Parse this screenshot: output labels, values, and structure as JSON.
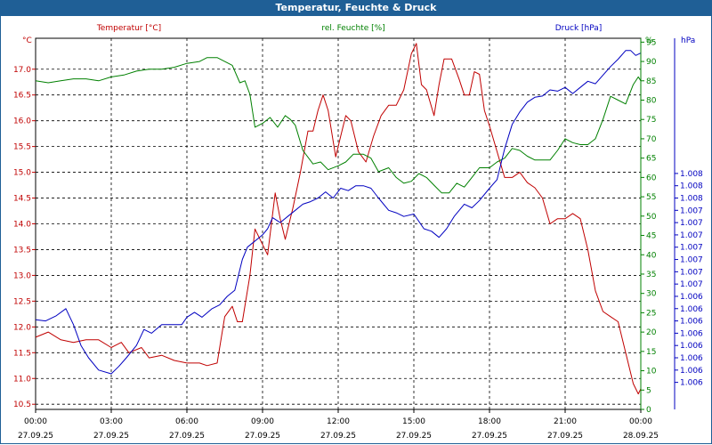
{
  "window": {
    "title": "Temperatur, Feuchte & Druck"
  },
  "colors": {
    "temperature": "#c00000",
    "humidity": "#008000",
    "pressure": "#0000c0",
    "title_bar": "#1f5f96",
    "grid": "#000000"
  },
  "chart_data": {
    "type": "line",
    "title": "Temperatur, Feuchte & Druck",
    "series_labels": {
      "temperature": "Temperatur [°C]",
      "humidity": "rel. Feuchte [%]",
      "pressure": "Druck [hPa]"
    },
    "axis_units": {
      "left": "°C",
      "right_inner": "%",
      "right_outer": "hPa"
    },
    "x": {
      "range_hours": [
        0,
        24
      ],
      "ticks": [
        {
          "h": 0,
          "time": "00:00",
          "date": "27.09.25"
        },
        {
          "h": 3,
          "time": "03:00",
          "date": "27.09.25"
        },
        {
          "h": 6,
          "time": "06:00",
          "date": "27.09.25"
        },
        {
          "h": 9,
          "time": "09:00",
          "date": "27.09.25"
        },
        {
          "h": 12,
          "time": "12:00",
          "date": "27.09.25"
        },
        {
          "h": 15,
          "time": "15:00",
          "date": "27.09.25"
        },
        {
          "h": 18,
          "time": "18:00",
          "date": "27.09.25"
        },
        {
          "h": 21,
          "time": "21:00",
          "date": "27.09.25"
        },
        {
          "h": 24,
          "time": "00:00",
          "date": "28.09.25"
        }
      ]
    },
    "y_left": {
      "range": [
        10.4,
        17.6
      ],
      "ticks": [
        "10.5",
        "11.0",
        "11.5",
        "12.0",
        "12.5",
        "13.0",
        "13.5",
        "14.0",
        "14.5",
        "15.0",
        "15.5",
        "16.0",
        "16.5",
        "17.0"
      ]
    },
    "y_humidity": {
      "range": [
        0,
        96
      ],
      "ticks": [
        "0",
        "5",
        "10",
        "15",
        "20",
        "25",
        "30",
        "35",
        "40",
        "45",
        "50",
        "55",
        "60",
        "65",
        "70",
        "75",
        "80",
        "85",
        "90",
        "95"
      ]
    },
    "y_pressure": {
      "range": [
        1005.58,
        1008.6
      ],
      "tick_values": [
        1005.8,
        1005.9,
        1006.0,
        1006.1,
        1006.2,
        1006.3,
        1006.4,
        1006.5,
        1006.6,
        1006.7,
        1006.8,
        1006.9,
        1007.0,
        1007.1,
        1007.2,
        1007.3,
        1007.4,
        1007.5
      ],
      "tick_labels": [
        "1.006",
        "1.006",
        "1.006",
        "1.006",
        "1.006",
        "1.006",
        "1.006",
        "1.006",
        "1.007",
        "1.007",
        "1.007",
        "1.007",
        "1.007",
        "1.007",
        "1.007",
        "1.008",
        "1.008",
        "1.008"
      ]
    },
    "series": [
      {
        "name": "Temperatur [°C]",
        "key": "temperature",
        "color": "#c00000",
        "points": [
          [
            0,
            11.8
          ],
          [
            0.5,
            11.9
          ],
          [
            1.0,
            11.75
          ],
          [
            1.5,
            11.7
          ],
          [
            2.0,
            11.75
          ],
          [
            2.5,
            11.75
          ],
          [
            3.0,
            11.6
          ],
          [
            3.4,
            11.7
          ],
          [
            3.7,
            11.5
          ],
          [
            4.2,
            11.6
          ],
          [
            4.5,
            11.4
          ],
          [
            5.0,
            11.45
          ],
          [
            5.5,
            11.35
          ],
          [
            6.0,
            11.3
          ],
          [
            6.5,
            11.3
          ],
          [
            6.8,
            11.25
          ],
          [
            7.2,
            11.3
          ],
          [
            7.5,
            12.2
          ],
          [
            7.8,
            12.4
          ],
          [
            8.0,
            12.1
          ],
          [
            8.2,
            12.1
          ],
          [
            8.5,
            13.0
          ],
          [
            8.7,
            13.9
          ],
          [
            9.0,
            13.6
          ],
          [
            9.2,
            13.4
          ],
          [
            9.5,
            14.6
          ],
          [
            9.7,
            14.1
          ],
          [
            9.9,
            13.7
          ],
          [
            10.2,
            14.3
          ],
          [
            10.5,
            15.0
          ],
          [
            10.8,
            15.8
          ],
          [
            11.0,
            15.8
          ],
          [
            11.2,
            16.2
          ],
          [
            11.4,
            16.5
          ],
          [
            11.6,
            16.2
          ],
          [
            11.9,
            15.3
          ],
          [
            12.1,
            15.7
          ],
          [
            12.3,
            16.1
          ],
          [
            12.5,
            16.0
          ],
          [
            12.8,
            15.4
          ],
          [
            13.1,
            15.2
          ],
          [
            13.4,
            15.7
          ],
          [
            13.7,
            16.1
          ],
          [
            14.0,
            16.3
          ],
          [
            14.3,
            16.3
          ],
          [
            14.6,
            16.6
          ],
          [
            14.9,
            17.3
          ],
          [
            15.1,
            17.5
          ],
          [
            15.3,
            16.7
          ],
          [
            15.5,
            16.6
          ],
          [
            15.8,
            16.1
          ],
          [
            16.0,
            16.7
          ],
          [
            16.2,
            17.2
          ],
          [
            16.5,
            17.2
          ],
          [
            16.8,
            16.8
          ],
          [
            17.0,
            16.5
          ],
          [
            17.2,
            16.5
          ],
          [
            17.4,
            16.95
          ],
          [
            17.6,
            16.9
          ],
          [
            17.8,
            16.2
          ],
          [
            18.0,
            15.9
          ],
          [
            18.3,
            15.4
          ],
          [
            18.6,
            14.9
          ],
          [
            18.9,
            14.9
          ],
          [
            19.2,
            15.0
          ],
          [
            19.5,
            14.8
          ],
          [
            19.8,
            14.7
          ],
          [
            20.1,
            14.5
          ],
          [
            20.4,
            14.0
          ],
          [
            20.7,
            14.1
          ],
          [
            21.0,
            14.1
          ],
          [
            21.3,
            14.2
          ],
          [
            21.6,
            14.1
          ],
          [
            21.9,
            13.5
          ],
          [
            22.2,
            12.7
          ],
          [
            22.5,
            12.3
          ],
          [
            22.8,
            12.2
          ],
          [
            23.1,
            12.1
          ],
          [
            23.4,
            11.5
          ],
          [
            23.7,
            10.9
          ],
          [
            23.9,
            10.7
          ],
          [
            24.0,
            10.8
          ]
        ]
      },
      {
        "name": "rel. Feuchte [%]",
        "key": "humidity",
        "color": "#008000",
        "points": [
          [
            0,
            85
          ],
          [
            0.5,
            84.5
          ],
          [
            1.0,
            85
          ],
          [
            1.5,
            85.5
          ],
          [
            2.0,
            85.5
          ],
          [
            2.5,
            85
          ],
          [
            3.0,
            86
          ],
          [
            3.5,
            86.5
          ],
          [
            4.0,
            87.5
          ],
          [
            4.5,
            88
          ],
          [
            5.0,
            88
          ],
          [
            5.5,
            88.5
          ],
          [
            6.0,
            89.5
          ],
          [
            6.5,
            90
          ],
          [
            6.8,
            91
          ],
          [
            7.2,
            91
          ],
          [
            7.5,
            90
          ],
          [
            7.8,
            89
          ],
          [
            8.1,
            84.5
          ],
          [
            8.3,
            85
          ],
          [
            8.5,
            81.5
          ],
          [
            8.7,
            73
          ],
          [
            9.0,
            74
          ],
          [
            9.3,
            75.5
          ],
          [
            9.6,
            73
          ],
          [
            9.9,
            76
          ],
          [
            10.1,
            75
          ],
          [
            10.3,
            73.5
          ],
          [
            10.6,
            67
          ],
          [
            11.0,
            63.5
          ],
          [
            11.3,
            64
          ],
          [
            11.6,
            62
          ],
          [
            12.0,
            63
          ],
          [
            12.3,
            64
          ],
          [
            12.6,
            66
          ],
          [
            13.0,
            66
          ],
          [
            13.3,
            65
          ],
          [
            13.6,
            61.5
          ],
          [
            14.0,
            62.5
          ],
          [
            14.3,
            60
          ],
          [
            14.6,
            58.5
          ],
          [
            14.9,
            59
          ],
          [
            15.2,
            61
          ],
          [
            15.5,
            60
          ],
          [
            15.8,
            58
          ],
          [
            16.1,
            56
          ],
          [
            16.4,
            56
          ],
          [
            16.7,
            58.5
          ],
          [
            17.0,
            57.5
          ],
          [
            17.3,
            60
          ],
          [
            17.6,
            62.5
          ],
          [
            18.0,
            62.5
          ],
          [
            18.3,
            64
          ],
          [
            18.6,
            65
          ],
          [
            18.9,
            67.5
          ],
          [
            19.2,
            67
          ],
          [
            19.5,
            65.5
          ],
          [
            19.8,
            64.5
          ],
          [
            20.1,
            64.5
          ],
          [
            20.4,
            64.5
          ],
          [
            20.7,
            67
          ],
          [
            21.0,
            70
          ],
          [
            21.3,
            69
          ],
          [
            21.6,
            68.5
          ],
          [
            21.9,
            68.5
          ],
          [
            22.2,
            70
          ],
          [
            22.5,
            75
          ],
          [
            22.8,
            81
          ],
          [
            23.1,
            80
          ],
          [
            23.4,
            79
          ],
          [
            23.7,
            84
          ],
          [
            23.9,
            86
          ],
          [
            24.0,
            85
          ]
        ]
      },
      {
        "name": "Druck [hPa]",
        "key": "pressure",
        "color": "#0000c0",
        "points": [
          [
            0,
            1006.31
          ],
          [
            0.4,
            1006.3
          ],
          [
            0.8,
            1006.34
          ],
          [
            1.2,
            1006.4
          ],
          [
            1.5,
            1006.27
          ],
          [
            1.8,
            1006.1
          ],
          [
            2.1,
            1006.0
          ],
          [
            2.5,
            1005.9
          ],
          [
            3.0,
            1005.87
          ],
          [
            3.3,
            1005.93
          ],
          [
            3.6,
            1006.0
          ],
          [
            4.0,
            1006.1
          ],
          [
            4.3,
            1006.23
          ],
          [
            4.6,
            1006.2
          ],
          [
            5.0,
            1006.27
          ],
          [
            5.4,
            1006.27
          ],
          [
            5.8,
            1006.27
          ],
          [
            6.0,
            1006.33
          ],
          [
            6.3,
            1006.37
          ],
          [
            6.6,
            1006.33
          ],
          [
            7.0,
            1006.4
          ],
          [
            7.3,
            1006.43
          ],
          [
            7.6,
            1006.5
          ],
          [
            7.9,
            1006.55
          ],
          [
            8.2,
            1006.8
          ],
          [
            8.4,
            1006.9
          ],
          [
            8.7,
            1006.95
          ],
          [
            9.0,
            1007.0
          ],
          [
            9.2,
            1007.05
          ],
          [
            9.4,
            1007.14
          ],
          [
            9.7,
            1007.1
          ],
          [
            10.0,
            1007.15
          ],
          [
            10.3,
            1007.2
          ],
          [
            10.6,
            1007.25
          ],
          [
            10.9,
            1007.27
          ],
          [
            11.2,
            1007.3
          ],
          [
            11.5,
            1007.35
          ],
          [
            11.8,
            1007.3
          ],
          [
            12.1,
            1007.38
          ],
          [
            12.4,
            1007.36
          ],
          [
            12.7,
            1007.4
          ],
          [
            13.0,
            1007.4
          ],
          [
            13.3,
            1007.38
          ],
          [
            13.6,
            1007.3
          ],
          [
            14.0,
            1007.2
          ],
          [
            14.3,
            1007.18
          ],
          [
            14.6,
            1007.15
          ],
          [
            15.0,
            1007.17
          ],
          [
            15.4,
            1007.05
          ],
          [
            15.7,
            1007.03
          ],
          [
            16.0,
            1006.98
          ],
          [
            16.3,
            1007.05
          ],
          [
            16.6,
            1007.15
          ],
          [
            17.0,
            1007.25
          ],
          [
            17.3,
            1007.22
          ],
          [
            17.6,
            1007.28
          ],
          [
            18.0,
            1007.38
          ],
          [
            18.3,
            1007.45
          ],
          [
            18.6,
            1007.7
          ],
          [
            18.9,
            1007.9
          ],
          [
            19.2,
            1008.0
          ],
          [
            19.5,
            1008.08
          ],
          [
            19.8,
            1008.12
          ],
          [
            20.1,
            1008.13
          ],
          [
            20.4,
            1008.18
          ],
          [
            20.7,
            1008.17
          ],
          [
            21.0,
            1008.2
          ],
          [
            21.3,
            1008.15
          ],
          [
            21.6,
            1008.2
          ],
          [
            21.9,
            1008.25
          ],
          [
            22.2,
            1008.23
          ],
          [
            22.5,
            1008.3
          ],
          [
            22.8,
            1008.37
          ],
          [
            23.1,
            1008.43
          ],
          [
            23.4,
            1008.5
          ],
          [
            23.6,
            1008.5
          ],
          [
            23.8,
            1008.46
          ],
          [
            24.0,
            1008.48
          ]
        ]
      }
    ]
  }
}
